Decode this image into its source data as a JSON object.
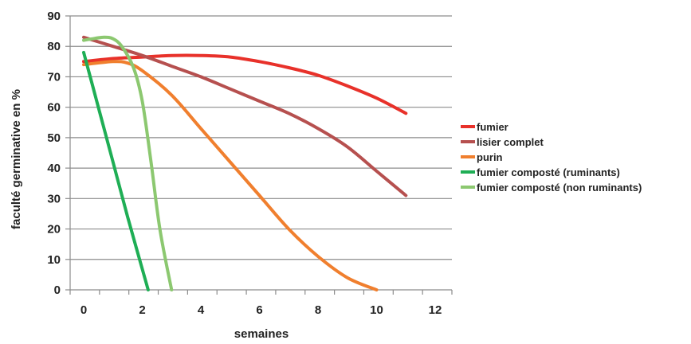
{
  "chart_data": {
    "type": "line",
    "title": "",
    "xlabel": "semaines",
    "ylabel": "faculté germinative en %",
    "xlim": [
      0,
      12
    ],
    "ylim": [
      0,
      90
    ],
    "xticks": [
      0,
      2,
      4,
      6,
      8,
      10,
      12
    ],
    "yticks": [
      0,
      10,
      20,
      30,
      40,
      50,
      60,
      70,
      80,
      90
    ],
    "grid": "horizontal",
    "legend_position": "right",
    "series": [
      {
        "name": "fumier",
        "color": "#e8312a",
        "points": [
          [
            0,
            75
          ],
          [
            1,
            76
          ],
          [
            2,
            76.5
          ],
          [
            3,
            77
          ],
          [
            4,
            77
          ],
          [
            5,
            76.5
          ],
          [
            6,
            75
          ],
          [
            7,
            73
          ],
          [
            8,
            70.5
          ],
          [
            9,
            67
          ],
          [
            10,
            63
          ],
          [
            11,
            58
          ]
        ]
      },
      {
        "name": "lisier complet",
        "color": "#b6504f",
        "points": [
          [
            0,
            83
          ],
          [
            1,
            80
          ],
          [
            2,
            77
          ],
          [
            3,
            73.5
          ],
          [
            4,
            70
          ],
          [
            5,
            66
          ],
          [
            6,
            62
          ],
          [
            7,
            58
          ],
          [
            8,
            53
          ],
          [
            9,
            47
          ],
          [
            10,
            39
          ],
          [
            11,
            31
          ]
        ]
      },
      {
        "name": "purin",
        "color": "#f07f2e",
        "points": [
          [
            0,
            74
          ],
          [
            1,
            75
          ],
          [
            1.5,
            74.5
          ],
          [
            2,
            72
          ],
          [
            3,
            64
          ],
          [
            4,
            53
          ],
          [
            5,
            42
          ],
          [
            6,
            31
          ],
          [
            7,
            20
          ],
          [
            8,
            11
          ],
          [
            9,
            4
          ],
          [
            10,
            0
          ]
        ]
      },
      {
        "name": "fumier composté (ruminants)",
        "color": "#1fae55",
        "points": [
          [
            0,
            78
          ],
          [
            0.5,
            60
          ],
          [
            1,
            42
          ],
          [
            1.5,
            24
          ],
          [
            2.2,
            0
          ]
        ]
      },
      {
        "name": "fumier composté (non ruminants)",
        "color": "#8cc870",
        "points": [
          [
            0,
            82
          ],
          [
            0.3,
            82.5
          ],
          [
            0.7,
            83
          ],
          [
            1,
            82.5
          ],
          [
            1.3,
            80
          ],
          [
            1.7,
            73
          ],
          [
            2,
            62
          ],
          [
            2.3,
            42
          ],
          [
            2.6,
            20
          ],
          [
            3,
            0
          ]
        ]
      }
    ]
  }
}
